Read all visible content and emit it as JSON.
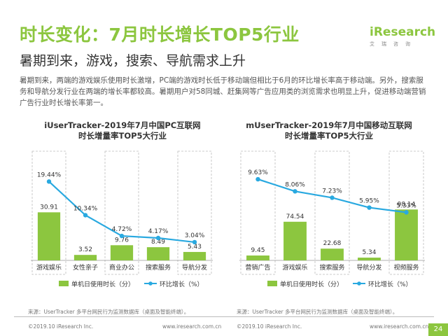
{
  "header": {
    "title": "时长变化：7月时长增长TOP5行业",
    "subtitle": "暑期到来，游戏，搜索、导航需求上升",
    "logo_text": "iResearch",
    "logo_cn": "艾瑞咨询"
  },
  "paragraph": "暑期到来，两端的游戏娱乐使用时长激增，PC端的游戏时长低于移动端但相比于6月的环比增长率高于移动端。另外，搜索服务和导航分发行业在两端的增长率都较高。暑期用户对58同城、赶集网等广告应用类的浏览需求也明显上升，促进移动端营销广告行业时长增长率第一。",
  "colors": {
    "bar": "#8cc63f",
    "line": "#29a9e0",
    "accent": "#8cc63f"
  },
  "chart_data": [
    {
      "type": "bar",
      "title_line1": "iUserTracker-2019年7月中国PC互联网",
      "title_line2": "时长增量率TOP5大行业",
      "categories": [
        "游戏娱乐",
        "女性亲子",
        "商业办公",
        "搜索服务",
        "导航分发"
      ],
      "series": [
        {
          "name": "单机日使用时长（分）",
          "kind": "bar",
          "values": [
            30.91,
            3.52,
            9.76,
            8.49,
            5.43
          ]
        },
        {
          "name": "环比增长（%）",
          "kind": "line",
          "values": [
            19.44,
            10.34,
            4.72,
            4.17,
            3.04
          ]
        }
      ],
      "value_labels_bar": [
        "30.91",
        "3.52",
        "9.76",
        "8.49",
        "5.43"
      ],
      "value_labels_line": [
        "19.44%",
        "10.34%",
        "4.72%",
        "4.17%",
        "3.04%"
      ],
      "ylim_bar": [
        0,
        45
      ],
      "ylim_line": [
        0,
        25
      ],
      "source": "来源：UserTracker 多平台网民行为监测数据库（桌面及智能终端）。"
    },
    {
      "type": "bar",
      "title_line1": "mUserTracker-2019年7月中国移动互联网",
      "title_line2": "时长增量率TOP5大行业",
      "categories": [
        "营销广告",
        "游戏娱乐",
        "搜索服务",
        "导航分发",
        "视频服务"
      ],
      "series": [
        {
          "name": "单机日使用时长（分）",
          "kind": "bar",
          "values": [
            9.45,
            74.54,
            22.68,
            5.34,
            98.14
          ]
        },
        {
          "name": "环比增长（%）",
          "kind": "line",
          "values": [
            9.63,
            8.06,
            7.23,
            5.95,
            5.33
          ]
        }
      ],
      "value_labels_bar": [
        "9.45",
        "74.54",
        "22.68",
        "5.34",
        "98.14"
      ],
      "value_labels_line": [
        "9.63%",
        "8.06%",
        "7.23%",
        "5.95%",
        "5.33%"
      ],
      "ylim_bar": [
        0,
        135
      ],
      "ylim_line": [
        0,
        12
      ],
      "source": "来源：UserTracker 多平台网民行为监测数据库（桌面及智能终端）。"
    }
  ],
  "footer": {
    "left_copyright": "©2019.10 iResearch Inc.",
    "left_url": "www.iresearch.com.cn",
    "right_copyright": "©2019.10 iResearch Inc.",
    "right_url": "www.iresearch.com.cn",
    "page": "24"
  }
}
